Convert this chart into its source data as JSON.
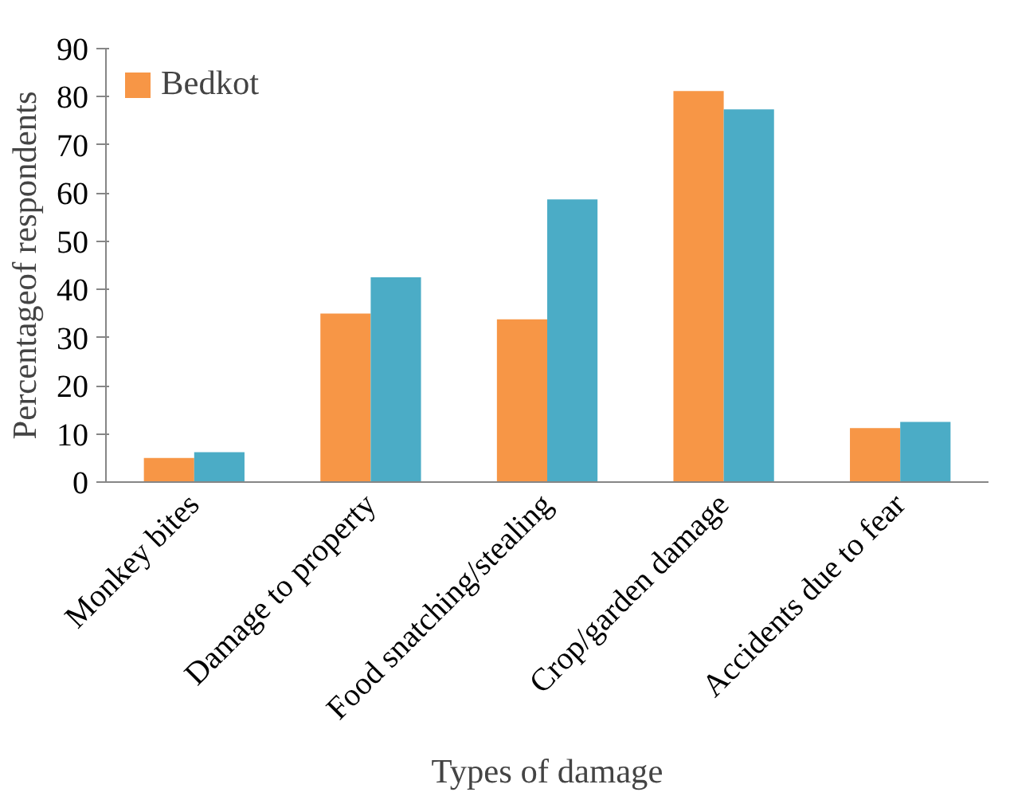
{
  "chart_data": {
    "type": "bar",
    "xlabel": "Types of damage",
    "ylabel": "Percentageof respondents",
    "categories": [
      "Monkey bites",
      "Damage to property",
      "Food snatching/stealing",
      "Crop/garden damage",
      "Accidents due to fear"
    ],
    "series": [
      {
        "name": "Bedkot",
        "color": "#f79646",
        "values": [
          5,
          35,
          33.8,
          81.2,
          11.2
        ]
      },
      {
        "color": "#4bacc6",
        "values": [
          6.2,
          42.5,
          58.7,
          77.4,
          12.5
        ]
      }
    ],
    "ylim": [
      0,
      90
    ],
    "yticks": [
      0,
      10,
      20,
      30,
      40,
      50,
      60,
      70,
      80,
      90
    ],
    "grid": false,
    "legend": "top left"
  }
}
